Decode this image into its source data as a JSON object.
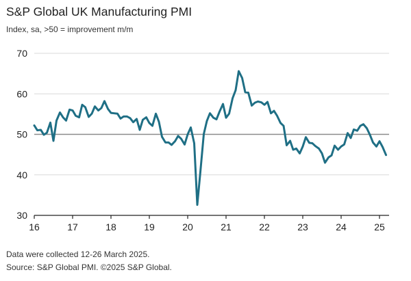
{
  "chart_data": {
    "type": "line",
    "title": "S&P Global UK Manufacturing PMI",
    "subtitle": "Index, sa, >50 = improvement m/m",
    "xlabel": "",
    "ylabel": "",
    "ylim": [
      30,
      70
    ],
    "yticks": [
      30,
      40,
      50,
      60,
      70
    ],
    "xlim": [
      2016,
      2025.25
    ],
    "xticks": [
      {
        "value": 2016,
        "label": "16"
      },
      {
        "value": 2017,
        "label": "17"
      },
      {
        "value": 2018,
        "label": "18"
      },
      {
        "value": 2019,
        "label": "19"
      },
      {
        "value": 2020,
        "label": "20"
      },
      {
        "value": 2021,
        "label": "21"
      },
      {
        "value": 2022,
        "label": "22"
      },
      {
        "value": 2023,
        "label": "23"
      },
      {
        "value": 2024,
        "label": "24"
      },
      {
        "value": 2025,
        "label": "25"
      }
    ],
    "grid": {
      "horizontal": true,
      "vertical": false
    },
    "reference_line": 50,
    "series": [
      {
        "color": "#1f6f85",
        "points": [
          [
            2016.0,
            52.2
          ],
          [
            2016.08,
            51.0
          ],
          [
            2016.17,
            51.1
          ],
          [
            2016.25,
            49.9
          ],
          [
            2016.33,
            50.4
          ],
          [
            2016.42,
            52.9
          ],
          [
            2016.5,
            48.4
          ],
          [
            2016.58,
            53.4
          ],
          [
            2016.67,
            55.4
          ],
          [
            2016.75,
            54.2
          ],
          [
            2016.83,
            53.4
          ],
          [
            2016.92,
            56.1
          ],
          [
            2017.0,
            55.9
          ],
          [
            2017.08,
            54.6
          ],
          [
            2017.17,
            54.2
          ],
          [
            2017.25,
            57.3
          ],
          [
            2017.33,
            56.7
          ],
          [
            2017.42,
            54.3
          ],
          [
            2017.5,
            55.1
          ],
          [
            2017.58,
            56.9
          ],
          [
            2017.67,
            55.9
          ],
          [
            2017.75,
            56.5
          ],
          [
            2017.83,
            58.2
          ],
          [
            2017.92,
            56.3
          ],
          [
            2018.0,
            55.3
          ],
          [
            2018.08,
            55.2
          ],
          [
            2018.17,
            55.1
          ],
          [
            2018.25,
            53.9
          ],
          [
            2018.33,
            54.4
          ],
          [
            2018.42,
            54.4
          ],
          [
            2018.5,
            54.0
          ],
          [
            2018.58,
            53.0
          ],
          [
            2018.67,
            53.8
          ],
          [
            2018.75,
            51.1
          ],
          [
            2018.83,
            53.6
          ],
          [
            2018.92,
            54.2
          ],
          [
            2019.0,
            52.8
          ],
          [
            2019.08,
            52.1
          ],
          [
            2019.17,
            55.1
          ],
          [
            2019.25,
            53.1
          ],
          [
            2019.33,
            49.4
          ],
          [
            2019.42,
            48.0
          ],
          [
            2019.5,
            48.0
          ],
          [
            2019.58,
            47.4
          ],
          [
            2019.67,
            48.3
          ],
          [
            2019.75,
            49.6
          ],
          [
            2019.83,
            48.9
          ],
          [
            2019.92,
            47.5
          ],
          [
            2020.0,
            50.0
          ],
          [
            2020.08,
            51.7
          ],
          [
            2020.17,
            47.8
          ],
          [
            2020.25,
            32.6
          ],
          [
            2020.33,
            40.7
          ],
          [
            2020.42,
            50.1
          ],
          [
            2020.5,
            53.3
          ],
          [
            2020.58,
            55.2
          ],
          [
            2020.67,
            54.1
          ],
          [
            2020.75,
            53.7
          ],
          [
            2020.83,
            55.6
          ],
          [
            2020.92,
            57.5
          ],
          [
            2021.0,
            54.1
          ],
          [
            2021.08,
            55.1
          ],
          [
            2021.17,
            58.9
          ],
          [
            2021.25,
            60.9
          ],
          [
            2021.33,
            65.6
          ],
          [
            2021.42,
            63.9
          ],
          [
            2021.5,
            60.4
          ],
          [
            2021.58,
            60.3
          ],
          [
            2021.67,
            57.1
          ],
          [
            2021.75,
            57.8
          ],
          [
            2021.83,
            58.1
          ],
          [
            2021.92,
            57.9
          ],
          [
            2022.0,
            57.3
          ],
          [
            2022.08,
            58.0
          ],
          [
            2022.17,
            55.2
          ],
          [
            2022.25,
            55.8
          ],
          [
            2022.33,
            54.6
          ],
          [
            2022.42,
            52.8
          ],
          [
            2022.5,
            52.1
          ],
          [
            2022.58,
            47.3
          ],
          [
            2022.67,
            48.4
          ],
          [
            2022.75,
            46.2
          ],
          [
            2022.83,
            46.5
          ],
          [
            2022.92,
            45.3
          ],
          [
            2023.0,
            47.0
          ],
          [
            2023.08,
            49.3
          ],
          [
            2023.17,
            47.9
          ],
          [
            2023.25,
            47.8
          ],
          [
            2023.33,
            47.1
          ],
          [
            2023.42,
            46.5
          ],
          [
            2023.5,
            45.3
          ],
          [
            2023.58,
            43.0
          ],
          [
            2023.67,
            44.3
          ],
          [
            2023.75,
            44.8
          ],
          [
            2023.83,
            47.2
          ],
          [
            2023.92,
            46.2
          ],
          [
            2024.0,
            47.0
          ],
          [
            2024.08,
            47.5
          ],
          [
            2024.17,
            50.3
          ],
          [
            2024.25,
            49.1
          ],
          [
            2024.33,
            51.2
          ],
          [
            2024.42,
            50.9
          ],
          [
            2024.5,
            52.1
          ],
          [
            2024.58,
            52.5
          ],
          [
            2024.67,
            51.5
          ],
          [
            2024.75,
            49.9
          ],
          [
            2024.83,
            48.0
          ],
          [
            2024.92,
            47.0
          ],
          [
            2025.0,
            48.3
          ],
          [
            2025.08,
            46.9
          ],
          [
            2025.17,
            44.9
          ]
        ]
      }
    ]
  },
  "footnotes": {
    "line1": "Data were collected 12-26 March 2025.",
    "line2": "Source: S&P Global PMI. ©2025 S&P Global."
  }
}
